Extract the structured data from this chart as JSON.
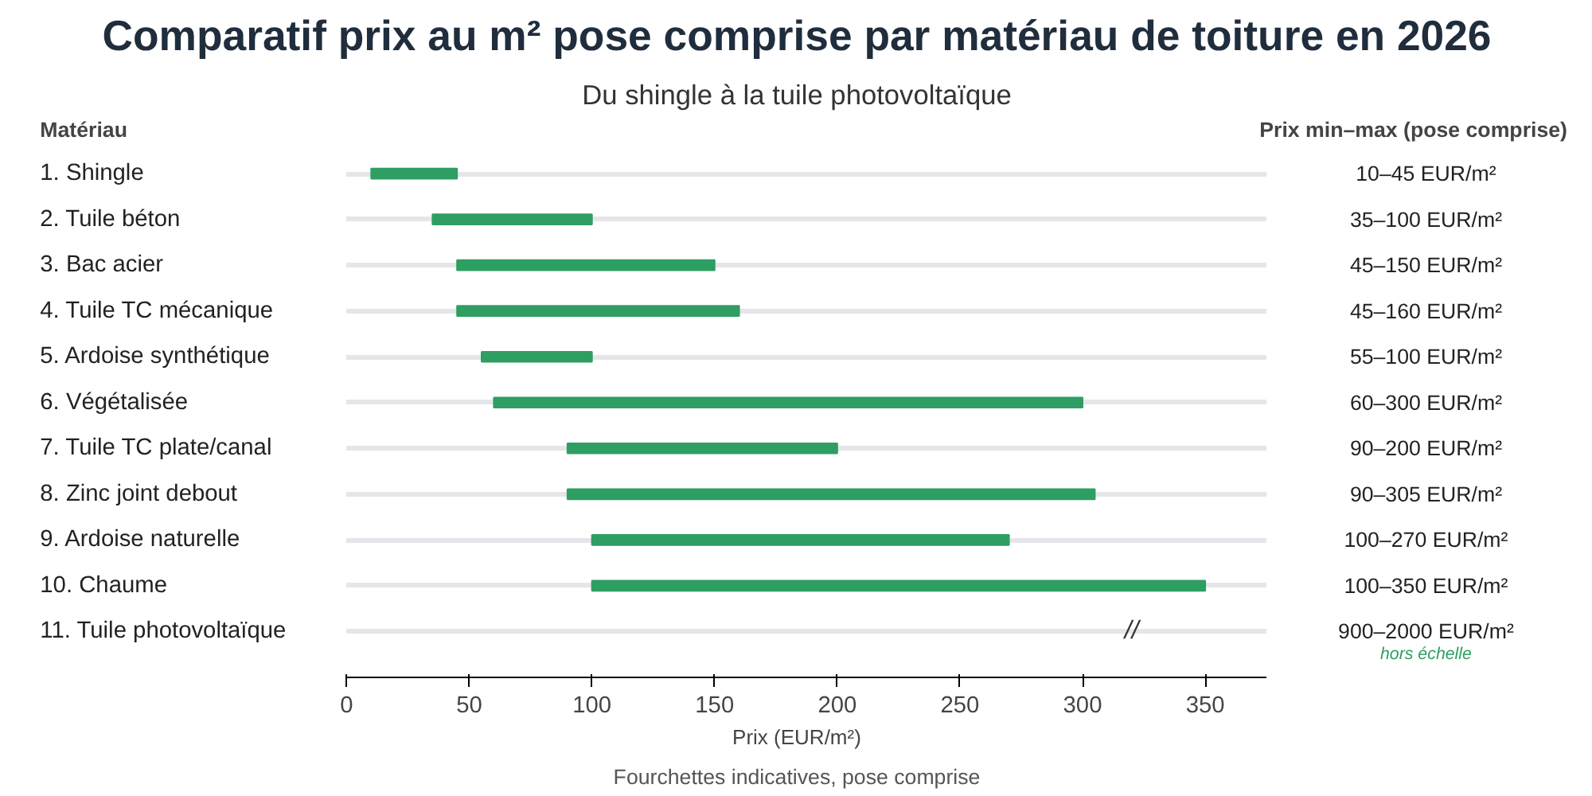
{
  "chart_data": {
    "type": "bar",
    "orientation": "horizontal",
    "title": "Comparatif prix au m² pose comprise par matériau de toiture en 2026",
    "subtitle": "Du shingle à la tuile photovoltaïque",
    "ylabel": "Matériau",
    "xlabel": "Prix (EUR/m²)",
    "categories": [
      "1. Shingle",
      "2. Tuile béton",
      "3. Bac acier",
      "4. Tuile TC mécanique",
      "5. Ardoise synthétique",
      "6. Végétalisée",
      "7. Tuile TC plate/canal",
      "8. Zinc joint debout",
      "9. Ardoise naturelle",
      "10. Chaume",
      "11. Tuile photovoltaïque"
    ],
    "base": [
      10,
      35,
      45,
      45,
      55,
      60,
      90,
      90,
      100,
      100,
      null
    ],
    "values": [
      35,
      65,
      105,
      115,
      45,
      240,
      110,
      215,
      170,
      250,
      null
    ],
    "value_labels": [
      "10–45 EUR/m²",
      "35–100 EUR/m²",
      "45–150 EUR/m²",
      "45–160 EUR/m²",
      "55–100 EUR/m²",
      "60–300 EUR/m²",
      "90–200 EUR/m²",
      "90–305 EUR/m²",
      "100–270 EUR/m²",
      "100–350 EUR/m²",
      "900–2000 EUR/m²"
    ],
    "color": "#2e9e62",
    "grid": "y",
    "xlim": [
      0,
      375
    ],
    "xticks": [
      0,
      50,
      100,
      150,
      200,
      250,
      300,
      350
    ],
    "annotations": [
      "Prix  min–max (pose comprise)",
      "hors échelle",
      "//",
      "Fourchettes indicatives, pose comprise"
    ]
  }
}
